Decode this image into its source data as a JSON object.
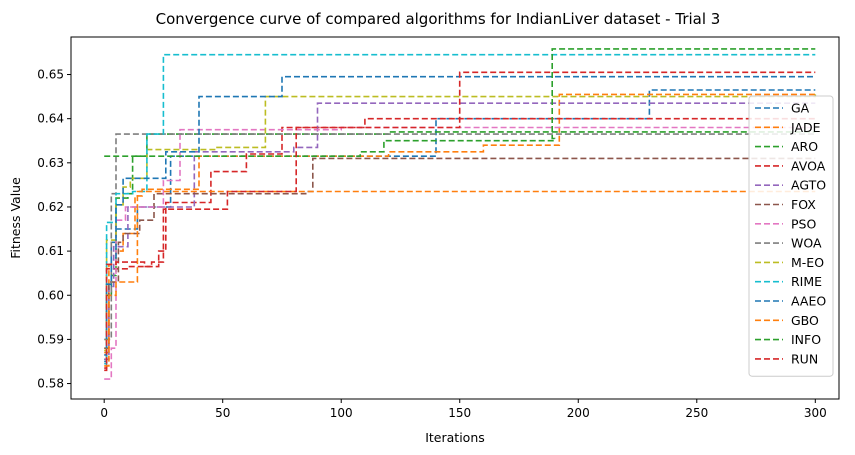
{
  "chart_data": {
    "type": "line",
    "title": "Convergence curve of compared algorithms for IndianLiver dataset - Trial 3",
    "xlabel": "Iterations",
    "ylabel": "Fitness Value",
    "xlim": [
      -14,
      310
    ],
    "ylim": [
      0.5765,
      0.6585
    ],
    "xticks": [
      0,
      50,
      100,
      150,
      200,
      250,
      300
    ],
    "xtick_labels": [
      "0",
      "50",
      "100",
      "150",
      "200",
      "250",
      "300"
    ],
    "yticks": [
      0.58,
      0.59,
      0.6,
      0.61,
      0.62,
      0.63,
      0.64,
      0.65
    ],
    "ytick_labels": [
      "0.58",
      "0.59",
      "0.60",
      "0.61",
      "0.62",
      "0.63",
      "0.64",
      "0.65"
    ],
    "grid": false,
    "legend_position": "right",
    "line_style": "dashed",
    "series": [
      {
        "name": "GA",
        "color": "#1f77b4",
        "steps": [
          [
            0,
            0.585
          ],
          [
            1,
            0.6
          ],
          [
            3,
            0.612
          ],
          [
            5,
            0.615
          ],
          [
            14,
            0.62
          ],
          [
            28,
            0.6315
          ],
          [
            60,
            0.6315
          ],
          [
            116,
            0.6315
          ],
          [
            140,
            0.64
          ],
          [
            230,
            0.6465
          ],
          [
            300,
            0.6465
          ]
        ]
      },
      {
        "name": "JADE",
        "color": "#ff7f0e",
        "steps": [
          [
            0,
            0.587
          ],
          [
            2,
            0.607
          ],
          [
            5,
            0.61
          ],
          [
            8,
            0.614
          ],
          [
            13,
            0.6225
          ],
          [
            16,
            0.624
          ],
          [
            40,
            0.6315
          ],
          [
            120,
            0.6325
          ],
          [
            160,
            0.634
          ],
          [
            192,
            0.6455
          ],
          [
            300,
            0.6455
          ]
        ]
      },
      {
        "name": "ARO",
        "color": "#2ca02c",
        "steps": [
          [
            0,
            0.5855
          ],
          [
            1,
            0.6
          ],
          [
            3,
            0.6045
          ],
          [
            5,
            0.622
          ],
          [
            10,
            0.623
          ],
          [
            12,
            0.6315
          ],
          [
            18,
            0.6365
          ],
          [
            50,
            0.6365
          ],
          [
            120,
            0.637
          ],
          [
            300,
            0.637
          ]
        ]
      },
      {
        "name": "AVOA",
        "color": "#d62728",
        "steps": [
          [
            0,
            0.5835
          ],
          [
            1,
            0.606
          ],
          [
            3,
            0.606
          ],
          [
            10,
            0.6065
          ],
          [
            23,
            0.61
          ],
          [
            26,
            0.621
          ],
          [
            41,
            0.621
          ],
          [
            45,
            0.628
          ],
          [
            60,
            0.632
          ],
          [
            75,
            0.638
          ],
          [
            110,
            0.64
          ],
          [
            145,
            0.64
          ],
          [
            195,
            0.64
          ],
          [
            300,
            0.64
          ]
        ]
      },
      {
        "name": "AGTO",
        "color": "#9467bd",
        "steps": [
          [
            0,
            0.5855
          ],
          [
            2,
            0.602
          ],
          [
            4,
            0.611
          ],
          [
            10,
            0.62
          ],
          [
            16,
            0.62
          ],
          [
            38,
            0.6325
          ],
          [
            60,
            0.6325
          ],
          [
            80,
            0.6335
          ],
          [
            90,
            0.6435
          ],
          [
            300,
            0.6435
          ]
        ]
      },
      {
        "name": "FOX",
        "color": "#8c564b",
        "steps": [
          [
            0,
            0.588
          ],
          [
            2,
            0.603
          ],
          [
            6,
            0.612
          ],
          [
            8,
            0.614
          ],
          [
            15,
            0.617
          ],
          [
            21,
            0.623
          ],
          [
            85,
            0.6235
          ],
          [
            88,
            0.631
          ],
          [
            300,
            0.631
          ]
        ]
      },
      {
        "name": "PSO",
        "color": "#e377c2",
        "steps": [
          [
            0,
            0.581
          ],
          [
            3,
            0.588
          ],
          [
            5,
            0.617
          ],
          [
            9,
            0.62
          ],
          [
            15,
            0.62
          ],
          [
            25,
            0.626
          ],
          [
            32,
            0.6375
          ],
          [
            45,
            0.6375
          ],
          [
            100,
            0.638
          ],
          [
            300,
            0.638
          ]
        ]
      },
      {
        "name": "WOA",
        "color": "#7f7f7f",
        "steps": [
          [
            0,
            0.59
          ],
          [
            3,
            0.623
          ],
          [
            5,
            0.6365
          ],
          [
            300,
            0.6365
          ]
        ]
      },
      {
        "name": "M-EO",
        "color": "#bcbd22",
        "steps": [
          [
            0,
            0.5875
          ],
          [
            1,
            0.6125
          ],
          [
            3,
            0.6125
          ],
          [
            5,
            0.6205
          ],
          [
            8,
            0.6245
          ],
          [
            11,
            0.6265
          ],
          [
            18,
            0.633
          ],
          [
            47,
            0.6335
          ],
          [
            61,
            0.6335
          ],
          [
            68,
            0.645
          ],
          [
            120,
            0.645
          ],
          [
            160,
            0.645
          ],
          [
            300,
            0.6455
          ]
        ]
      },
      {
        "name": "RIME",
        "color": "#17becf",
        "steps": [
          [
            0,
            0.5845
          ],
          [
            1,
            0.6165
          ],
          [
            5,
            0.623
          ],
          [
            12,
            0.6235
          ],
          [
            18,
            0.6365
          ],
          [
            23,
            0.6365
          ],
          [
            25,
            0.6545
          ],
          [
            300,
            0.6545
          ]
        ]
      },
      {
        "name": "AAEO",
        "color": "#1f77b4",
        "steps": [
          [
            0,
            0.5865
          ],
          [
            1,
            0.6025
          ],
          [
            3,
            0.6085
          ],
          [
            5,
            0.6205
          ],
          [
            8,
            0.6265
          ],
          [
            12,
            0.6265
          ],
          [
            26,
            0.6325
          ],
          [
            40,
            0.645
          ],
          [
            75,
            0.6495
          ],
          [
            300,
            0.6495
          ]
        ]
      },
      {
        "name": "GBO",
        "color": "#ff7f0e",
        "steps": [
          [
            0,
            0.584
          ],
          [
            2,
            0.6
          ],
          [
            5,
            0.603
          ],
          [
            14,
            0.6235
          ],
          [
            40,
            0.6235
          ],
          [
            300,
            0.6235
          ]
        ]
      },
      {
        "name": "INFO",
        "color": "#2ca02c",
        "steps": [
          [
            0,
            0.6315
          ],
          [
            30,
            0.6315
          ],
          [
            60,
            0.6315
          ],
          [
            108,
            0.6325
          ],
          [
            118,
            0.635
          ],
          [
            190,
            0.6355
          ],
          [
            189,
            0.6558
          ],
          [
            300,
            0.6558
          ]
        ]
      },
      {
        "name": "RUN",
        "color": "#d62728",
        "steps": [
          [
            0,
            0.583
          ],
          [
            1,
            0.607
          ],
          [
            5,
            0.6075
          ],
          [
            8,
            0.6075
          ],
          [
            17,
            0.6065
          ],
          [
            20,
            0.6075
          ],
          [
            25,
            0.6195
          ],
          [
            43,
            0.6195
          ],
          [
            52,
            0.6235
          ],
          [
            80,
            0.6235
          ],
          [
            81,
            0.638
          ],
          [
            143,
            0.638
          ],
          [
            150,
            0.6505
          ],
          [
            300,
            0.6505
          ]
        ]
      }
    ]
  }
}
